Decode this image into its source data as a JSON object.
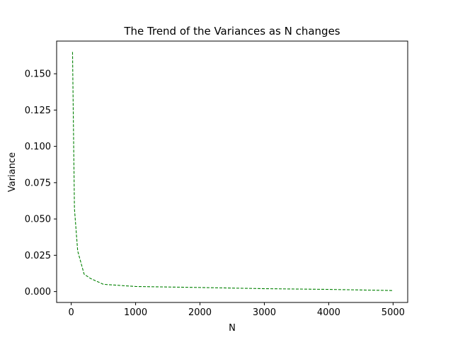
{
  "chart_data": {
    "type": "line",
    "title": "The Trend of the Variances as N changes",
    "xlabel": "N",
    "ylabel": "Variance",
    "xlim": [
      -227,
      5227
    ],
    "ylim": [
      -0.0075,
      0.1725
    ],
    "xticks": [
      0,
      1000,
      2000,
      3000,
      4000,
      5000
    ],
    "xtick_labels": [
      "0",
      "1000",
      "2000",
      "3000",
      "4000",
      "5000"
    ],
    "yticks": [
      0,
      0.025,
      0.05,
      0.075,
      0.1,
      0.125,
      0.15
    ],
    "ytick_labels": [
      "0.000",
      "0.025",
      "0.050",
      "0.075",
      "0.100",
      "0.125",
      "0.150"
    ],
    "grid": false,
    "series": [
      {
        "color": "#008000",
        "linestyle": "dashed",
        "x": [
          20,
          50,
          100,
          200,
          300,
          500,
          1000,
          2000,
          3000,
          4000,
          5000
        ],
        "y": [
          0.165,
          0.057,
          0.028,
          0.012,
          0.009,
          0.005,
          0.0035,
          0.0028,
          0.002,
          0.0015,
          0.0007
        ]
      }
    ]
  }
}
